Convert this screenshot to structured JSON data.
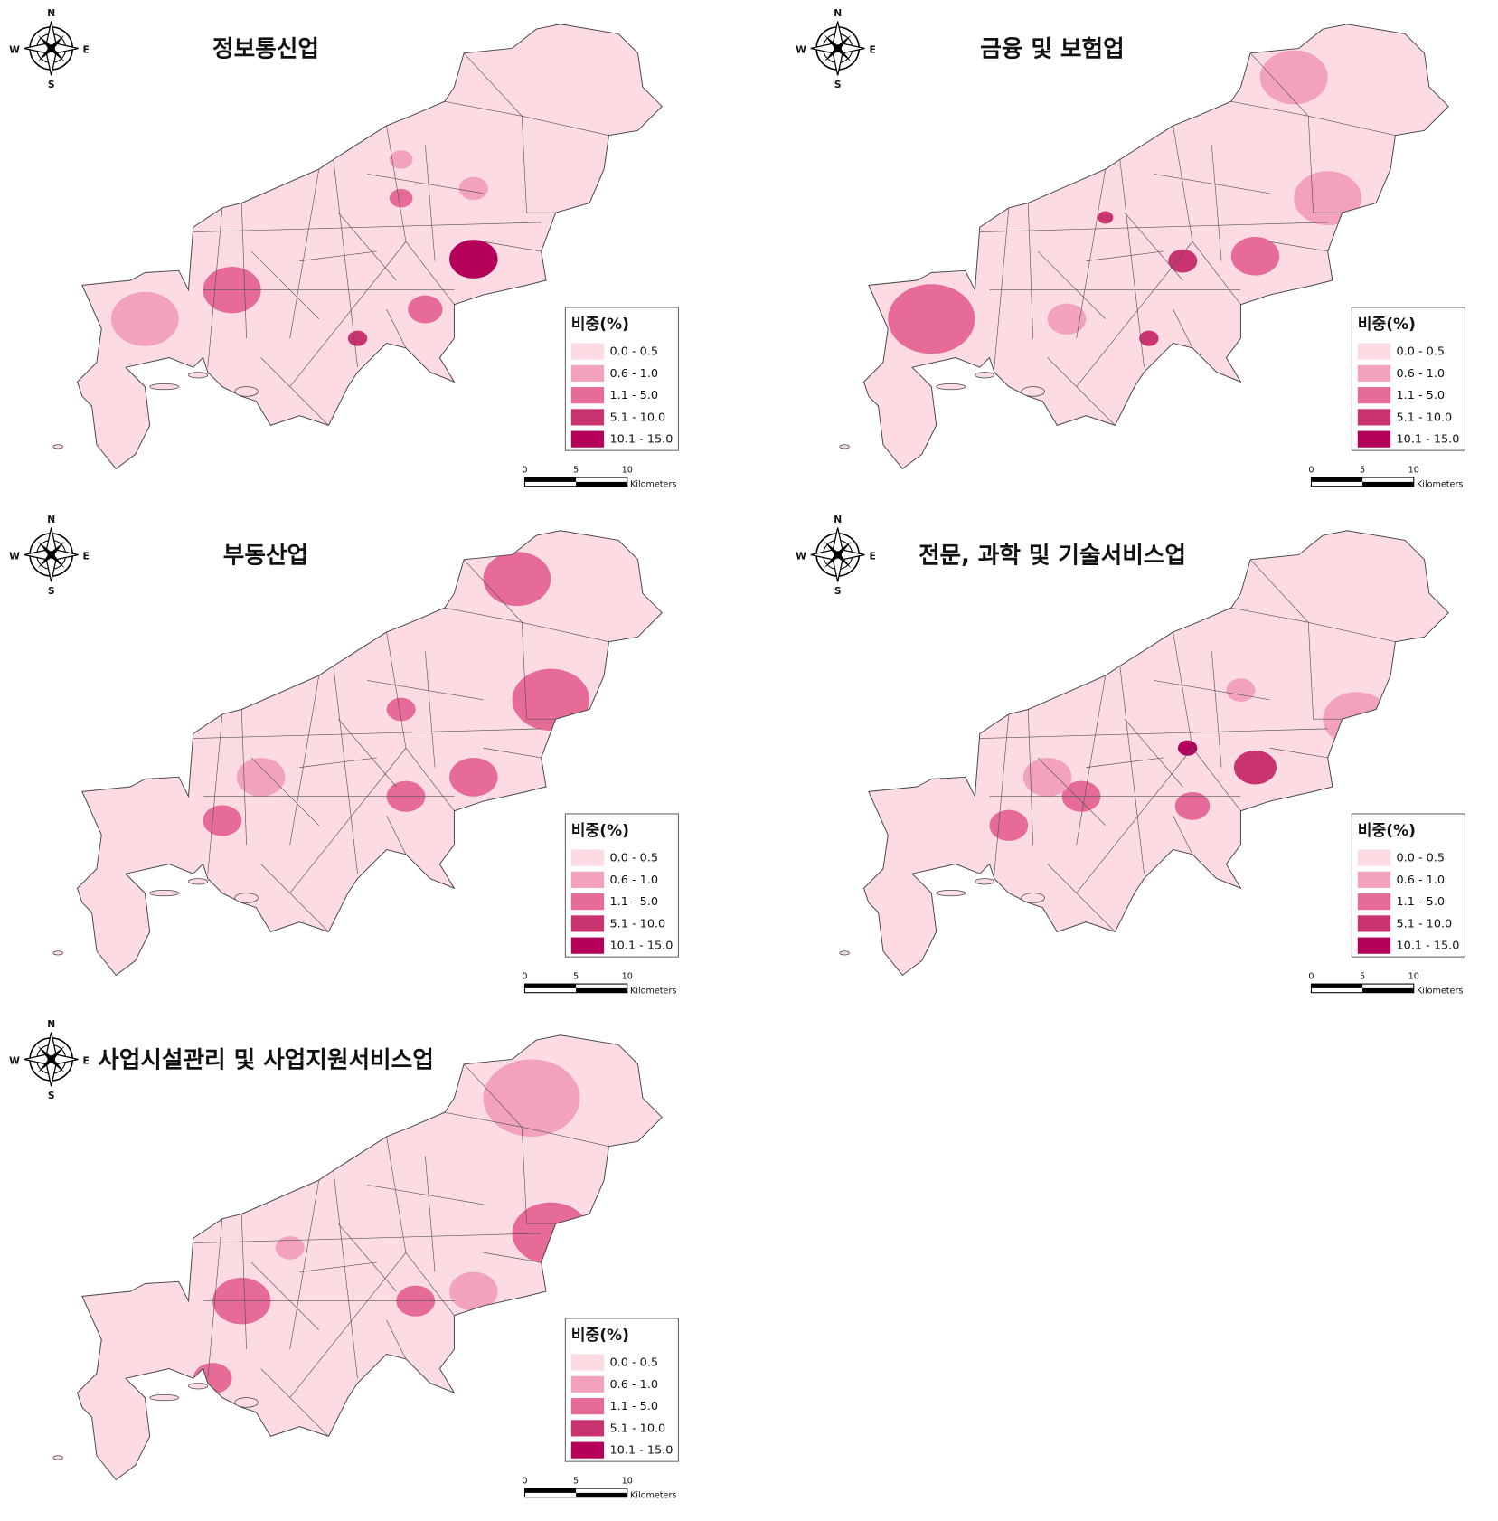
{
  "panels": [
    {
      "title": "정보통신업"
    },
    {
      "title": "금융 및 보험업"
    },
    {
      "title": "부동산업"
    },
    {
      "title": "전문, 과학 및 기술서비스업"
    },
    {
      "title": "사업시설관리 및 사업지원서비스업"
    }
  ],
  "legend": {
    "title": "비중(%)",
    "classes": [
      {
        "label": "0.0 - 0.5",
        "color": "#fcdbe3"
      },
      {
        "label": "0.6 - 1.0",
        "color": "#f3a2be"
      },
      {
        "label": "1.1 - 5.0",
        "color": "#e66b98"
      },
      {
        "label": "5.1 - 10.0",
        "color": "#c93470"
      },
      {
        "label": "10.1 - 15.0",
        "color": "#b5005a"
      }
    ]
  },
  "scale_bar": {
    "ticks": [
      "0",
      "5",
      "10"
    ],
    "unit": "Kilometers"
  },
  "compass": {
    "n": "N",
    "s": "S",
    "w": "W",
    "e": "E"
  }
}
